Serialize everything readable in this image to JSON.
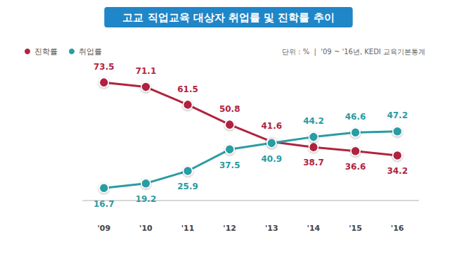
{
  "chart_data": {
    "type": "line",
    "title": "고교 직업교육 대상자 취업률 및 진학률 추이",
    "subtitle": "단위 : %  |  '09 ~ '16년, KEDI 교육기본통계",
    "categories": [
      "'09",
      "'10",
      "'11",
      "'12",
      "'13",
      "'14",
      "'15",
      "'16"
    ],
    "series": [
      {
        "name": "진학률",
        "color": "#b0243f",
        "values": [
          73.5,
          71.1,
          61.5,
          50.8,
          41.6,
          38.7,
          36.6,
          34.2
        ]
      },
      {
        "name": "취업률",
        "color": "#2a9ca3",
        "values": [
          16.7,
          19.2,
          25.9,
          37.5,
          40.9,
          44.2,
          46.6,
          47.2
        ]
      }
    ],
    "ylim": [
      10,
      80
    ],
    "grid": false,
    "legend": "top-left",
    "data_labels": true,
    "tick_labels": "x",
    "marker": "circle"
  }
}
